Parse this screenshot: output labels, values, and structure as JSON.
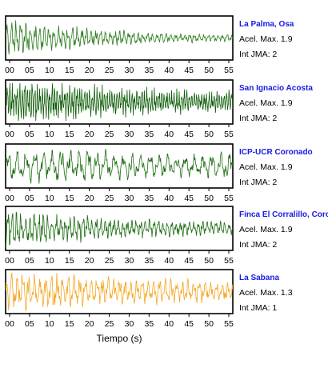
{
  "chart_data": {
    "type": "line",
    "xlabel": "Tiempo (s)",
    "x_ticks": [
      "00",
      "05",
      "10",
      "15",
      "20",
      "25",
      "30",
      "35",
      "40",
      "45",
      "50",
      "55"
    ],
    "xlim": [
      -1,
      56
    ],
    "accel_label": "Acel. Max.",
    "jma_label": "Int JMA:",
    "panels": [
      {
        "name": "La Palma, Osa",
        "acel_max": "1.9",
        "int_jma": "2",
        "color": "#2e7d1e",
        "envelope": "decay",
        "freq": 0.85
      },
      {
        "name": "San Ignacio Acosta",
        "acel_max": "1.9",
        "int_jma": "2",
        "color": "#0f5e0a",
        "envelope": "dense",
        "freq": 1.6
      },
      {
        "name": "ICP-UCR Coronado",
        "acel_max": "1.9",
        "int_jma": "2",
        "color": "#1f6e14",
        "envelope": "steady",
        "freq": 0.45
      },
      {
        "name": "Finca El Corralillo, Corona",
        "acel_max": "1.9",
        "int_jma": "2",
        "color": "#1f6e14",
        "envelope": "decay2",
        "freq": 0.9
      },
      {
        "name": "La Sabana",
        "acel_max": "1.3",
        "int_jma": "1",
        "color": "#f5a623",
        "envelope": "sabana",
        "freq": 0.7
      }
    ]
  }
}
